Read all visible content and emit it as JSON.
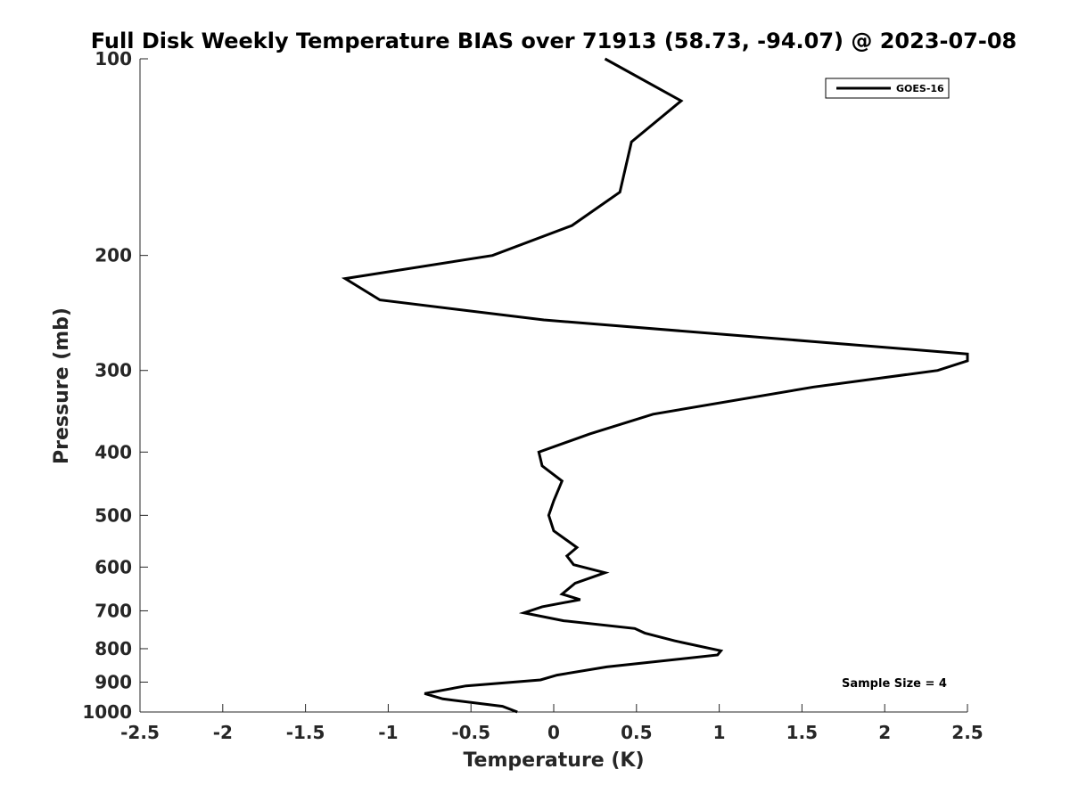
{
  "chart_data": {
    "type": "line",
    "title": "Full Disk Weekly Temperature BIAS over 71913 (58.73, -94.07) @ 2023-07-08",
    "xlabel": "Temperature (K)",
    "ylabel": "Pressure (mb)",
    "xlim": [
      -2.5,
      2.5
    ],
    "ylim": [
      100,
      1000
    ],
    "y_scale": "log",
    "y_reversed": true,
    "grid": false,
    "legend_position": "top-right",
    "xticks": [
      "-2.5",
      "-2",
      "-1.5",
      "-1",
      "-0.5",
      "0",
      "0.5",
      "1",
      "1.5",
      "2",
      "2.5"
    ],
    "yticks": [
      "100",
      "200",
      "300",
      "400",
      "500",
      "600",
      "700",
      "800",
      "900",
      "1000"
    ],
    "series": [
      {
        "name": "GOES-16",
        "color": "#000000",
        "points": [
          {
            "x": 0.31,
            "y": 100
          },
          {
            "x": 0.77,
            "y": 116
          },
          {
            "x": 0.47,
            "y": 134
          },
          {
            "x": 0.4,
            "y": 160
          },
          {
            "x": 0.11,
            "y": 180
          },
          {
            "x": -0.37,
            "y": 200
          },
          {
            "x": -1.26,
            "y": 217
          },
          {
            "x": -1.05,
            "y": 234
          },
          {
            "x": -0.06,
            "y": 251
          },
          {
            "x": 2.5,
            "y": 283
          },
          {
            "x": 2.5,
            "y": 290
          },
          {
            "x": 2.32,
            "y": 300
          },
          {
            "x": 1.57,
            "y": 318
          },
          {
            "x": 0.6,
            "y": 350
          },
          {
            "x": 0.22,
            "y": 375
          },
          {
            "x": -0.09,
            "y": 400
          },
          {
            "x": -0.07,
            "y": 420
          },
          {
            "x": 0.05,
            "y": 443
          },
          {
            "x": 0.0,
            "y": 475
          },
          {
            "x": -0.03,
            "y": 500
          },
          {
            "x": 0.0,
            "y": 528
          },
          {
            "x": 0.14,
            "y": 560
          },
          {
            "x": 0.08,
            "y": 577
          },
          {
            "x": 0.12,
            "y": 595
          },
          {
            "x": 0.31,
            "y": 612
          },
          {
            "x": 0.13,
            "y": 635
          },
          {
            "x": 0.05,
            "y": 660
          },
          {
            "x": 0.16,
            "y": 673
          },
          {
            "x": -0.07,
            "y": 690
          },
          {
            "x": -0.18,
            "y": 705
          },
          {
            "x": 0.06,
            "y": 725
          },
          {
            "x": 0.49,
            "y": 745
          },
          {
            "x": 0.55,
            "y": 757
          },
          {
            "x": 0.73,
            "y": 778
          },
          {
            "x": 1.01,
            "y": 806
          },
          {
            "x": 0.99,
            "y": 818
          },
          {
            "x": 0.32,
            "y": 853
          },
          {
            "x": 0.02,
            "y": 878
          },
          {
            "x": -0.08,
            "y": 893
          },
          {
            "x": -0.53,
            "y": 912
          },
          {
            "x": -0.78,
            "y": 937
          },
          {
            "x": -0.67,
            "y": 955
          },
          {
            "x": -0.31,
            "y": 980
          },
          {
            "x": -0.22,
            "y": 1000
          }
        ]
      }
    ],
    "annotations": [
      {
        "text": "Sample Size = 4",
        "position": "bottom-right"
      }
    ]
  }
}
